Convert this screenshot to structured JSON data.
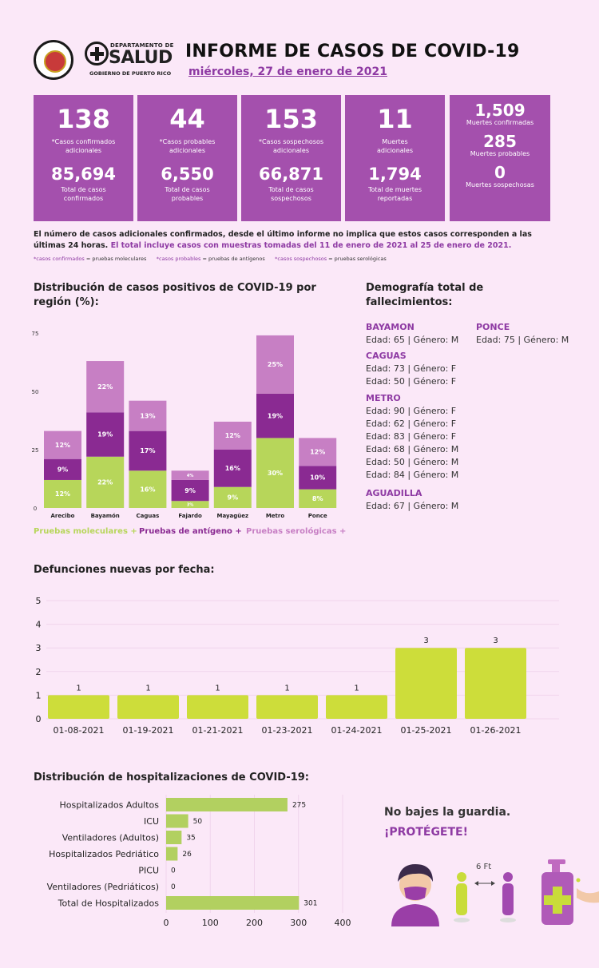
{
  "header": {
    "title": "INFORME DE CASOS DE COVID-19",
    "date": "miércoles, 27 de enero de 2021",
    "logo_dept": "DEPARTAMENTO DE",
    "logo_name": "SALUD",
    "logo_gob": "GOBIERNO DE PUERTO RICO"
  },
  "stats": [
    {
      "big": "138",
      "big_label": "*Casos confirmados adicionales",
      "mid": "85,694",
      "mid_label": "Total de casos confirmados"
    },
    {
      "big": "44",
      "big_label": "*Casos probables adicionales",
      "mid": "6,550",
      "mid_label": "Total de casos probables"
    },
    {
      "big": "153",
      "big_label": "*Casos sospechosos adicionales",
      "mid": "66,871",
      "mid_label": "Total de casos sospechosos"
    },
    {
      "big": "11",
      "big_label": "Muertes adicionales",
      "mid": "1,794",
      "mid_label": "Total de muertes reportadas"
    }
  ],
  "deaths": [
    {
      "value": "1,509",
      "label": "Muertes confirmadas"
    },
    {
      "value": "285",
      "label": "Muertes probables"
    },
    {
      "value": "0",
      "label": "Muertes sospechosas"
    }
  ],
  "notes": {
    "line1": "El número de casos adicionales confirmados, desde el último informe no implica que estos casos corresponden a las últimas 24 horas.",
    "line1_hl": "El total incluye casos con muestras tomadas del 11 de enero de 2021 al 25 de enero de 2021.",
    "n2a_k": "*casos confirmados",
    "n2a_v": "= pruebas moleculares",
    "n2b_k": "*casos probables",
    "n2b_v": "= pruebas de antígenos",
    "n2c_k": "*casos sospechosos",
    "n2c_v": "= pruebas serológicas"
  },
  "sections": {
    "region": "Distribución de casos positivos de COVID-19 por región (%):",
    "demo": "Demografía total de fallecimientos:",
    "deaths_by_date": "Defunciones nuevas por fecha:",
    "hosp": "Distribución de hospitalizaciones de COVID-19:"
  },
  "demography": [
    {
      "region": "BAYAMON",
      "entries": [
        "Edad: 65 | Género: M"
      ]
    },
    {
      "region": "PONCE",
      "entries": [
        "Edad: 75 | Género: M"
      ]
    },
    {
      "region": "CAGUAS",
      "entries": [
        "Edad: 73 | Género: F",
        "Edad: 50 | Género: F"
      ]
    },
    {
      "region": "METRO",
      "entries": [
        "Edad: 90 | Género: F",
        "Edad: 62 | Género: F",
        "Edad: 83 | Género: F",
        "Edad: 68 | Género: M",
        "Edad: 50 | Género: M",
        "Edad: 84 | Género: M"
      ]
    },
    {
      "region": "AGUADILLA",
      "entries": [
        "Edad: 67 | Género: M"
      ]
    }
  ],
  "closing": {
    "line1": "No bajes la guardia.",
    "line2": "¡PROTÉGETE!",
    "distance": "6 Ft"
  },
  "colors": {
    "purple_box": "#a450ad",
    "molecular": "#b7d65a",
    "antigen": "#8a2a92",
    "serologic": "#c77fc4",
    "bar_green": "#cddd3a",
    "hosp_green": "#b2d060"
  },
  "chart_data": [
    {
      "type": "bar",
      "stacked": true,
      "categories": [
        "Arecibo",
        "Bayamón",
        "Caguas",
        "Fajardo",
        "Mayagüez",
        "Metro",
        "Ponce"
      ],
      "series": [
        {
          "name": "Pruebas moleculares +",
          "values": [
            12,
            22,
            16,
            3,
            9,
            30,
            8
          ],
          "labels": [
            "12%",
            "22%",
            "16%",
            "3%",
            "9%",
            "30%",
            "8%"
          ]
        },
        {
          "name": "Pruebas de antígeno +",
          "values": [
            9,
            19,
            17,
            9,
            16,
            19,
            10
          ],
          "labels": [
            "9%",
            "19%",
            "17%",
            "9%",
            "16%",
            "19%",
            "10%"
          ]
        },
        {
          "name": "Pruebas serológicas +",
          "values": [
            12,
            22,
            13,
            4,
            12,
            25,
            12
          ],
          "labels": [
            "12%",
            "22%",
            "13%",
            "4%",
            "12%",
            "25%",
            "12%"
          ]
        }
      ],
      "yticks": [
        "0",
        "25",
        "50",
        "75"
      ],
      "ylim": [
        0,
        75
      ]
    },
    {
      "type": "bar",
      "categories": [
        "01-08-2021",
        "01-19-2021",
        "01-21-2021",
        "01-23-2021",
        "01-24-2021",
        "01-25-2021",
        "01-26-2021"
      ],
      "values": [
        1,
        1,
        1,
        1,
        1,
        3,
        3
      ],
      "yticks": [
        "0",
        "1",
        "2",
        "3",
        "4",
        "5"
      ],
      "ylim": [
        0,
        5
      ]
    },
    {
      "type": "bar",
      "orientation": "horizontal",
      "categories": [
        "Hospitalizados Adultos",
        "ICU",
        "Ventiladores (Adultos)",
        "Hospitalizados Pedriático",
        "PICU",
        "Ventiladores (Pedriáticos)",
        "Total de Hospitalizados"
      ],
      "values": [
        275,
        50,
        35,
        26,
        0,
        0,
        301
      ],
      "xticks": [
        "0",
        "100",
        "200",
        "300",
        "400"
      ],
      "xlim": [
        0,
        400
      ]
    }
  ]
}
